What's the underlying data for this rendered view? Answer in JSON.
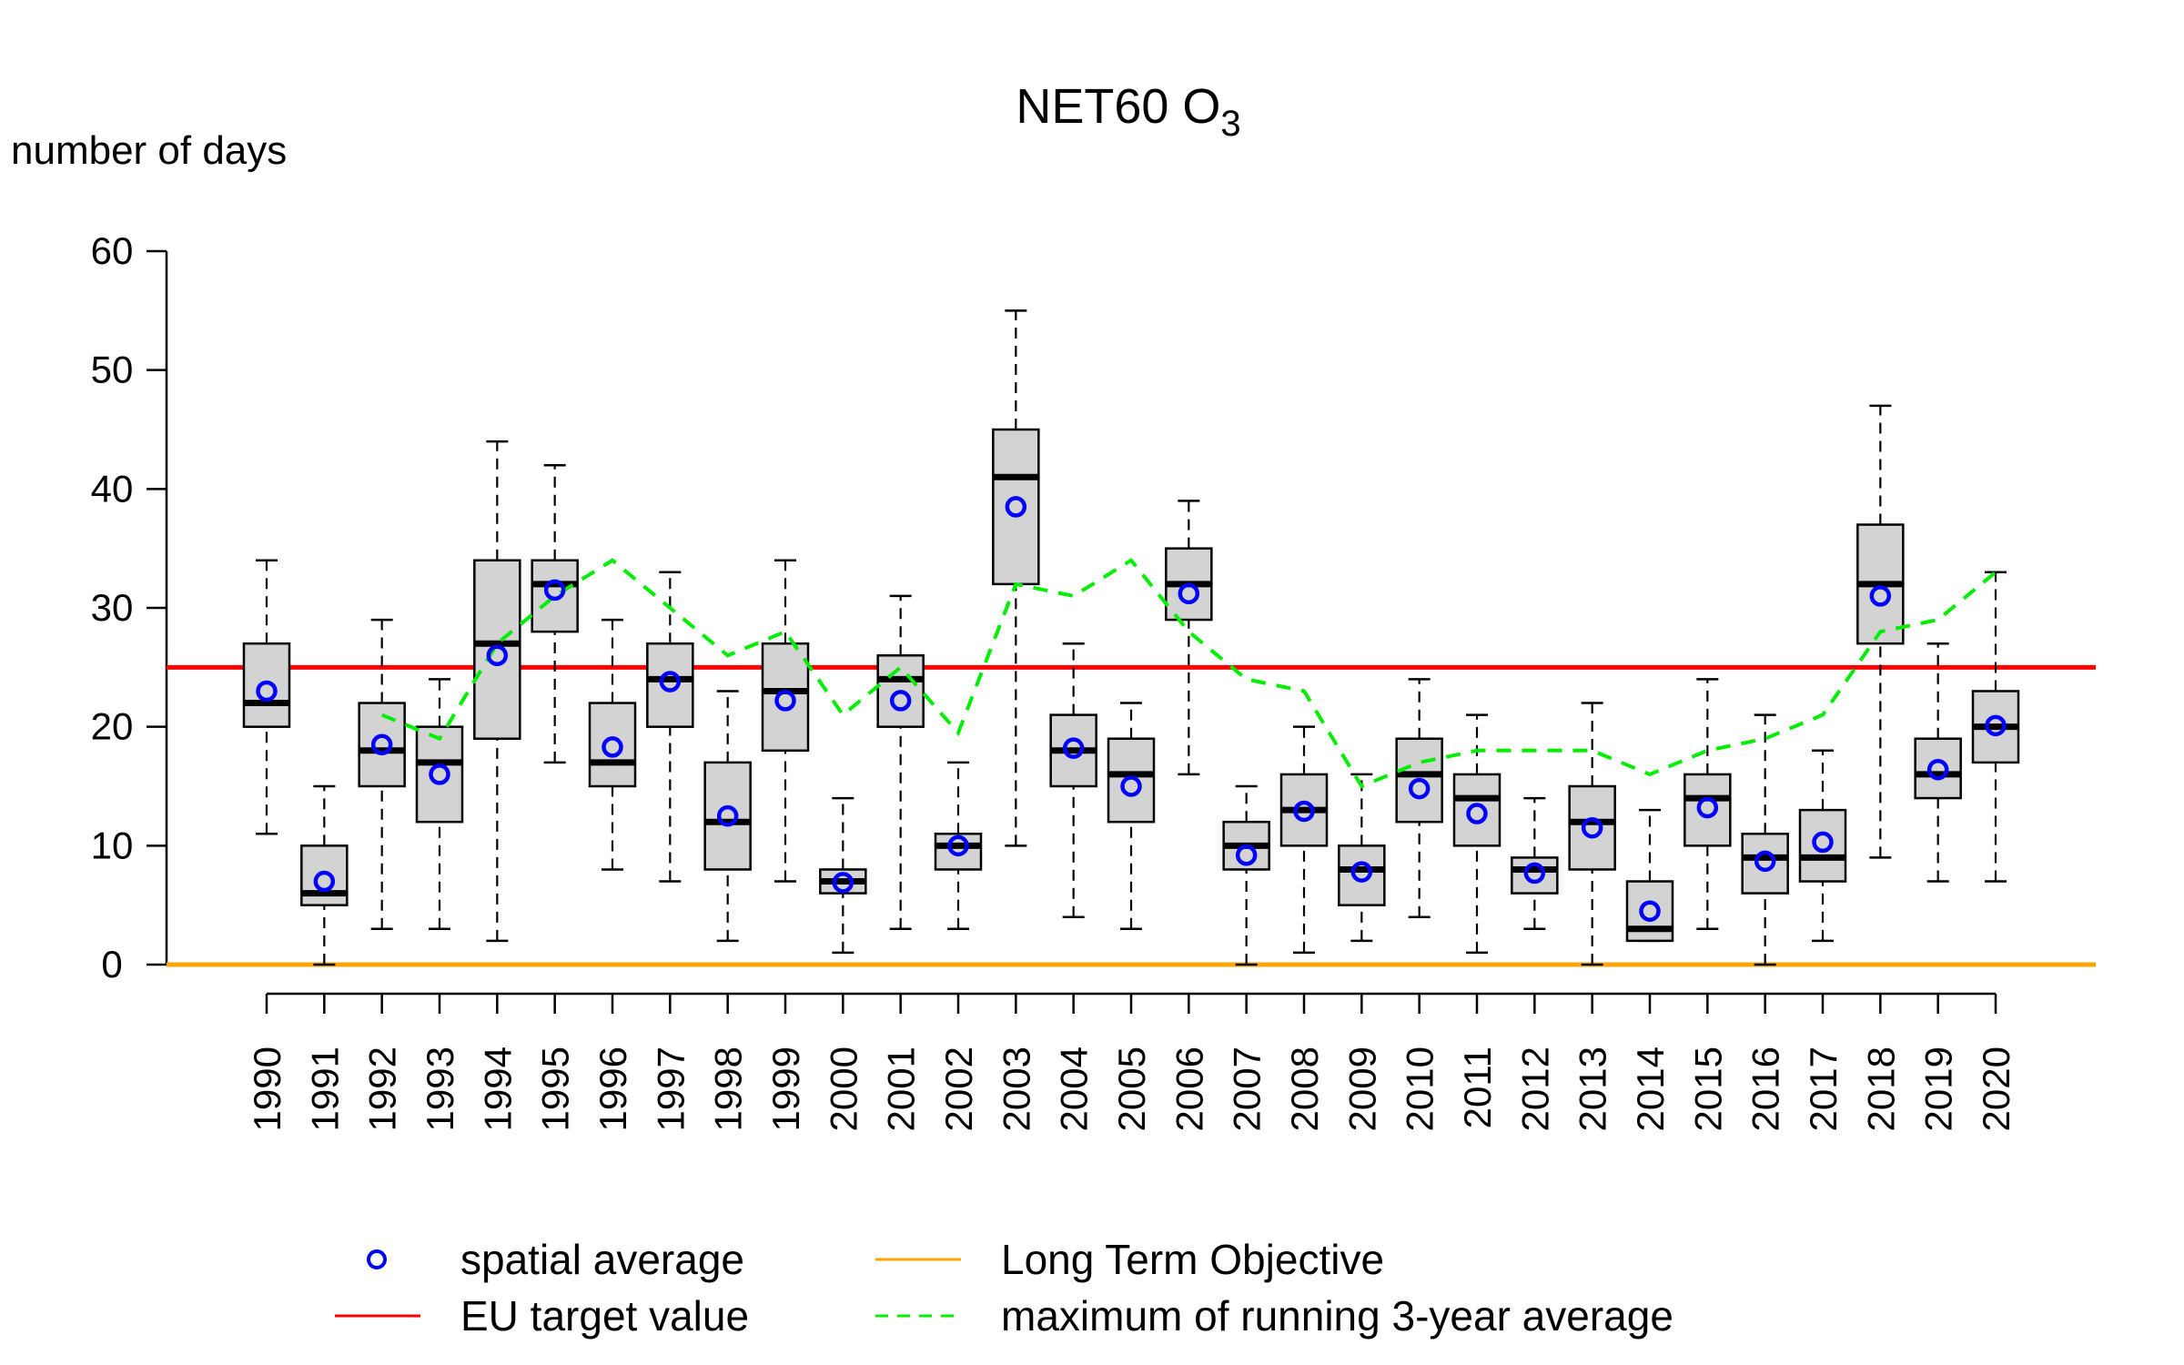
{
  "chart_data": {
    "type": "boxplot",
    "title": "NET60 O",
    "title_subscript": "3",
    "ylabel": "number of days",
    "ylim": [
      0,
      60
    ],
    "yticks": [
      0,
      10,
      20,
      30,
      40,
      50,
      60
    ],
    "grid": false,
    "categories": [
      "1990",
      "1991",
      "1992",
      "1993",
      "1994",
      "1995",
      "1996",
      "1997",
      "1998",
      "1999",
      "2000",
      "2001",
      "2002",
      "2003",
      "2004",
      "2005",
      "2006",
      "2007",
      "2008",
      "2009",
      "2010",
      "2011",
      "2012",
      "2013",
      "2014",
      "2015",
      "2016",
      "2017",
      "2018",
      "2019",
      "2020"
    ],
    "boxes": [
      [
        11,
        20,
        22,
        27,
        34
      ],
      [
        0,
        5,
        6,
        10,
        15
      ],
      [
        3,
        15,
        18,
        22,
        29
      ],
      [
        3,
        12,
        17,
        20,
        24
      ],
      [
        2,
        19,
        27,
        34,
        44
      ],
      [
        17,
        28,
        32,
        34,
        42
      ],
      [
        8,
        15,
        17,
        22,
        29
      ],
      [
        7,
        20,
        24,
        27,
        33
      ],
      [
        2,
        8,
        12,
        17,
        23
      ],
      [
        7,
        18,
        23,
        27,
        34
      ],
      [
        1,
        6,
        7,
        8,
        14
      ],
      [
        3,
        20,
        24,
        26,
        31
      ],
      [
        3,
        8,
        10,
        11,
        17
      ],
      [
        10,
        32,
        41,
        45,
        55
      ],
      [
        4,
        15,
        18,
        21,
        27
      ],
      [
        3,
        12,
        16,
        19,
        22
      ],
      [
        16,
        29,
        32,
        35,
        39
      ],
      [
        0,
        8,
        10,
        12,
        15
      ],
      [
        1,
        10,
        13,
        16,
        20
      ],
      [
        2,
        5,
        8,
        10,
        16
      ],
      [
        4,
        12,
        16,
        19,
        24
      ],
      [
        1,
        10,
        14,
        16,
        21
      ],
      [
        3,
        6,
        8,
        9,
        14
      ],
      [
        0,
        8,
        12,
        15,
        22
      ],
      [
        2,
        2,
        3,
        7,
        13
      ],
      [
        3,
        10,
        14,
        16,
        24
      ],
      [
        0,
        6,
        9,
        11,
        21
      ],
      [
        2,
        7,
        9,
        13,
        18
      ],
      [
        9,
        27,
        32,
        37,
        47
      ],
      [
        7,
        14,
        16,
        19,
        27
      ],
      [
        7,
        17,
        20,
        23,
        33
      ]
    ],
    "box_fields": [
      "whisker_low",
      "q1",
      "median",
      "q3",
      "whisker_high"
    ],
    "series": [
      {
        "name": "spatial average",
        "type": "points",
        "color": "#0000ff",
        "values": [
          23,
          7,
          18.5,
          16,
          26,
          31.5,
          18.3,
          23.8,
          12.5,
          22.2,
          6.9,
          22.2,
          10,
          38.5,
          18.2,
          15,
          31.2,
          9.2,
          12.9,
          7.8,
          14.8,
          12.7,
          7.7,
          11.5,
          4.5,
          13.2,
          8.7,
          10.3,
          31,
          16.4,
          20.1
        ]
      },
      {
        "name": "maximum of running 3-year average",
        "type": "dashed-line",
        "color": "#00ee00",
        "values": [
          null,
          null,
          21,
          19,
          27,
          31,
          34,
          30,
          26,
          28,
          21,
          25,
          19.5,
          32,
          31,
          34,
          28,
          24,
          23,
          15,
          17,
          18,
          18,
          18,
          16,
          18,
          19,
          21,
          28,
          29,
          33
        ]
      }
    ],
    "reference_lines": [
      {
        "name": "EU target value",
        "value": 25,
        "color": "#ff0000"
      },
      {
        "name": "Long Term Objective",
        "value": 0,
        "color": "#ffa500"
      }
    ],
    "legend": {
      "placement": "bottom",
      "items": [
        "spatial average",
        "EU target value",
        "Long Term Objective",
        "maximum of running 3-year average"
      ]
    },
    "box_fill": "#d3d3d3"
  }
}
